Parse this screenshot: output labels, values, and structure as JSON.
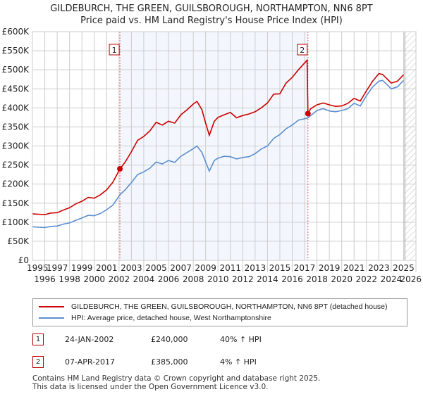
{
  "chart_data": {
    "type": "line",
    "title": "GILDEBURCH, THE GREEN, GUILSBOROUGH, NORTHAMPTON, NN6 8PT",
    "subtitle": "Price paid vs. HM Land Registry's House Price Index (HPI)",
    "xlim": [
      1995,
      2026
    ],
    "ylim": [
      0,
      600000
    ],
    "x_ticks": [
      "1995",
      "1996",
      "1997",
      "1998",
      "1999",
      "2000",
      "2001",
      "2002",
      "2003",
      "2004",
      "2005",
      "2006",
      "2007",
      "2008",
      "2009",
      "2010",
      "2011",
      "2012",
      "2013",
      "2014",
      "2015",
      "2016",
      "2017",
      "2018",
      "2019",
      "2020",
      "2021",
      "2022",
      "2023",
      "2024",
      "2025",
      "2026"
    ],
    "y_ticks": [
      {
        "v": 0,
        "label": "£0"
      },
      {
        "v": 50000,
        "label": "£50K"
      },
      {
        "v": 100000,
        "label": "£100K"
      },
      {
        "v": 150000,
        "label": "£150K"
      },
      {
        "v": 200000,
        "label": "£200K"
      },
      {
        "v": 250000,
        "label": "£250K"
      },
      {
        "v": 300000,
        "label": "£300K"
      },
      {
        "v": 350000,
        "label": "£350K"
      },
      {
        "v": 400000,
        "label": "£400K"
      },
      {
        "v": 450000,
        "label": "£450K"
      },
      {
        "v": 500000,
        "label": "£500K"
      },
      {
        "v": 550000,
        "label": "£550K"
      },
      {
        "v": 600000,
        "label": "£600K"
      }
    ],
    "grid": true,
    "series": [
      {
        "name": "GILDEBURCH, THE GREEN, GUILSBOROUGH, NORTHAMPTON, NN6 8PT (detached house)",
        "color": "#cc0000",
        "x": [
          1995,
          1995.5,
          1996,
          1996.5,
          1997,
          1997.5,
          1998,
          1998.5,
          1999,
          1999.5,
          2000,
          2000.5,
          2001,
          2001.5,
          2002.07,
          2002.5,
          2003,
          2003.5,
          2004,
          2004.5,
          2005,
          2005.5,
          2006,
          2006.5,
          2007,
          2007.5,
          2008,
          2008.3,
          2008.7,
          2009,
          2009.3,
          2009.7,
          2010,
          2010.5,
          2011,
          2011.5,
          2012,
          2012.5,
          2013,
          2013.5,
          2014,
          2014.5,
          2015,
          2015.5,
          2016,
          2016.5,
          2017.2,
          2017.27,
          2017.5,
          2018,
          2018.5,
          2019,
          2019.5,
          2020,
          2020.5,
          2021,
          2021.5,
          2022,
          2022.5,
          2023,
          2023.3,
          2023.7,
          2024,
          2024.5,
          2025
        ],
        "y": [
          122000,
          121000,
          120000,
          124000,
          125000,
          132000,
          138000,
          148000,
          155000,
          165000,
          163000,
          172000,
          185000,
          205000,
          240000,
          258000,
          285000,
          315000,
          325000,
          340000,
          362000,
          355000,
          365000,
          360000,
          382000,
          395000,
          410000,
          417000,
          395000,
          360000,
          328000,
          365000,
          375000,
          382000,
          388000,
          374000,
          380000,
          384000,
          390000,
          400000,
          413000,
          436000,
          437000,
          465000,
          480000,
          500000,
          525000,
          385000,
          398000,
          408000,
          413000,
          408000,
          404000,
          405000,
          412000,
          425000,
          418000,
          445000,
          470000,
          490000,
          488000,
          475000,
          465000,
          470000,
          487000
        ]
      },
      {
        "name": "HPI: Average price, detached house, West Northamptonshire",
        "color": "#5b8fd0",
        "x": [
          1995,
          1995.5,
          1996,
          1996.5,
          1997,
          1997.5,
          1998,
          1998.5,
          1999,
          1999.5,
          2000,
          2000.5,
          2001,
          2001.5,
          2002.07,
          2002.5,
          2003,
          2003.5,
          2004,
          2004.5,
          2005,
          2005.5,
          2006,
          2006.5,
          2007,
          2007.5,
          2008,
          2008.3,
          2008.7,
          2009,
          2009.3,
          2009.7,
          2010,
          2010.5,
          2011,
          2011.5,
          2012,
          2012.5,
          2013,
          2013.5,
          2014,
          2014.5,
          2015,
          2015.5,
          2016,
          2016.5,
          2017.2,
          2017.27,
          2017.5,
          2018,
          2018.5,
          2019,
          2019.5,
          2020,
          2020.5,
          2021,
          2021.5,
          2022,
          2022.5,
          2023,
          2023.3,
          2023.7,
          2024,
          2024.5,
          2025
        ],
        "y": [
          88000,
          87000,
          86000,
          89000,
          90000,
          95000,
          98000,
          105000,
          111000,
          118000,
          117000,
          123000,
          133000,
          145000,
          172000,
          185000,
          204000,
          225000,
          232000,
          242000,
          258000,
          253000,
          262000,
          257000,
          273000,
          283000,
          293000,
          300000,
          283000,
          258000,
          234000,
          262000,
          268000,
          273000,
          272000,
          266000,
          270000,
          272000,
          280000,
          292000,
          300000,
          320000,
          330000,
          345000,
          355000,
          368000,
          373000,
          374000,
          380000,
          393000,
          398000,
          392000,
          390000,
          393000,
          398000,
          412000,
          405000,
          432000,
          455000,
          470000,
          472000,
          460000,
          450000,
          455000,
          472000
        ]
      }
    ],
    "annotations": [
      {
        "label": "1",
        "x": 2002.07,
        "y": 240000
      },
      {
        "label": "2",
        "x": 2017.27,
        "y": 385000
      }
    ],
    "shaded_range": [
      2002.07,
      2017.27
    ],
    "hatched_after": 2025.1
  },
  "legend": {
    "red": "GILDEBURCH, THE GREEN, GUILSBOROUGH, NORTHAMPTON, NN6 8PT (detached house)",
    "blue": "HPI: Average price, detached house, West Northamptonshire"
  },
  "transactions": [
    {
      "num": "1",
      "date": "24-JAN-2002",
      "price": "£240,000",
      "hpi": "40% ↑ HPI"
    },
    {
      "num": "2",
      "date": "07-APR-2017",
      "price": "£385,000",
      "hpi": "4% ↑ HPI"
    }
  ],
  "footer": {
    "line1": "Contains HM Land Registry data © Crown copyright and database right 2025.",
    "line2": "This data is licensed under the Open Government Licence v3.0."
  }
}
